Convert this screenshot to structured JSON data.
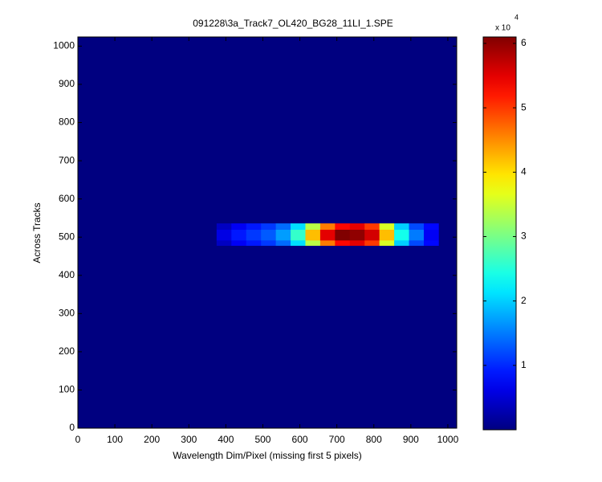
{
  "chart_data": {
    "type": "heatmap",
    "title": "091228\\3a_Track7_OL420_BG28_11LI_1.SPE",
    "x_label": "Wavelength Dim/Pixel (missing first 5 pixels)",
    "y_label": "Across Tracks",
    "xlim": [
      0,
      1024
    ],
    "ylim": [
      0,
      1024
    ],
    "xticks": [
      0,
      100,
      200,
      300,
      400,
      500,
      600,
      700,
      800,
      900,
      1000
    ],
    "yticks": [
      0,
      100,
      200,
      300,
      400,
      500,
      600,
      700,
      800,
      900,
      1000
    ],
    "background": 0,
    "x_edges": [
      375,
      415,
      455,
      495,
      535,
      575,
      615,
      655,
      695,
      735,
      775,
      815,
      855,
      895,
      935,
      975
    ],
    "y_edges": [
      478,
      492,
      506,
      520,
      536
    ],
    "z": [
      [
        4000,
        7000,
        9000,
        11000,
        14000,
        21000,
        34000,
        46000,
        53000,
        55000,
        50000,
        36000,
        20000,
        12000,
        8000
      ],
      [
        6000,
        9000,
        11000,
        13000,
        17000,
        26000,
        42000,
        55000,
        61000,
        60000,
        56000,
        42000,
        24000,
        15000,
        7000
      ],
      [
        6000,
        9000,
        11000,
        13000,
        17000,
        26000,
        42000,
        55000,
        61000,
        60000,
        56000,
        42000,
        24000,
        15000,
        7000
      ],
      [
        4000,
        7000,
        9000,
        11000,
        14000,
        21000,
        34000,
        46000,
        53000,
        55000,
        50000,
        36000,
        20000,
        12000,
        8000
      ]
    ],
    "colormap": "jet",
    "clim": [
      0,
      61000
    ],
    "colorbar_ticks": [
      {
        "value": 10000,
        "label": "1"
      },
      {
        "value": 20000,
        "label": "2"
      },
      {
        "value": 30000,
        "label": "3"
      },
      {
        "value": 40000,
        "label": "4"
      },
      {
        "value": 50000,
        "label": "5"
      },
      {
        "value": 60000,
        "label": "6"
      }
    ],
    "colorbar_multiplier": "x 10",
    "colorbar_exponent": "4"
  }
}
